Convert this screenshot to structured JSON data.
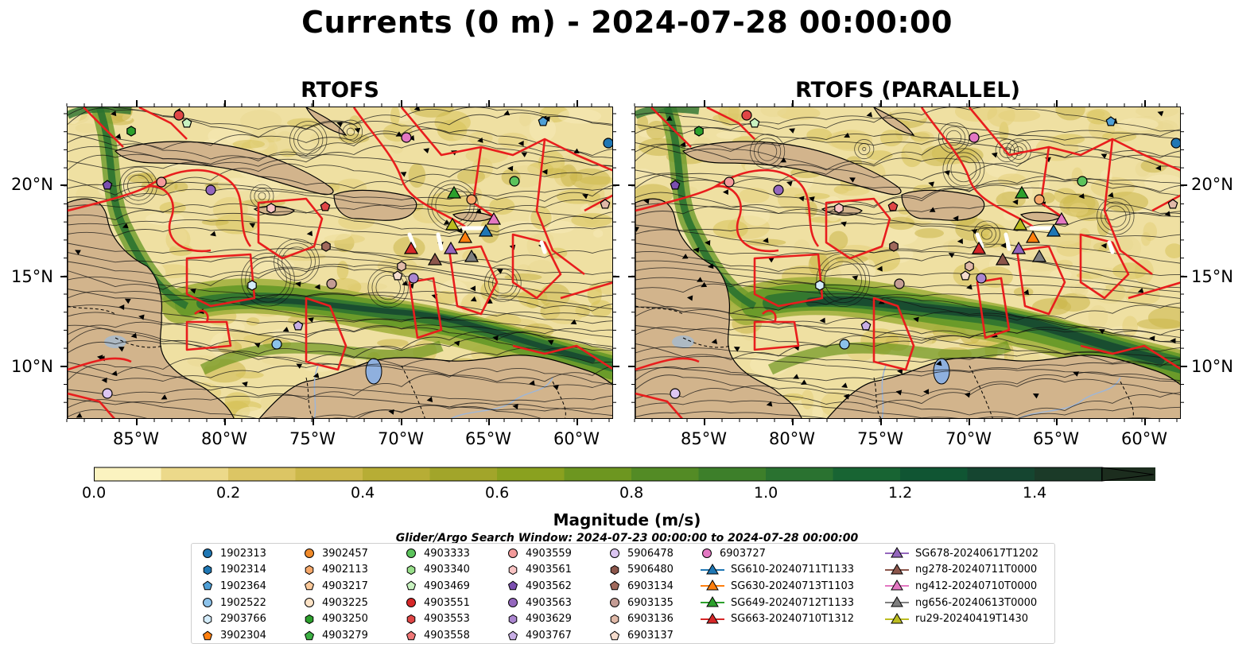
{
  "title": "Currents (0 m) - 2024-07-28 00:00:00",
  "panels": [
    {
      "title": "RTOFS"
    },
    {
      "title": "RTOFS (PARALLEL)"
    }
  ],
  "axes": {
    "lat_ticks": [
      "20°N",
      "15°N",
      "10°N"
    ],
    "lon_ticks": [
      "85°W",
      "80°W",
      "75°W",
      "70°W",
      "65°W",
      "60°W"
    ]
  },
  "colorbar": {
    "label": "Magnitude (m/s)",
    "tick_labels": [
      "0.0",
      "0.2",
      "0.4",
      "0.6",
      "0.8",
      "1.0",
      "1.2",
      "1.4"
    ],
    "colors": [
      "#fbf3c0",
      "#ecd98a",
      "#dcc564",
      "#ccb84a",
      "#b7ad35",
      "#a2a52a",
      "#8aa11f",
      "#6d9620",
      "#538b25",
      "#3d7f2a",
      "#2a7230",
      "#186433",
      "#105533",
      "#154530",
      "#1b3a28",
      "#1c2d1e"
    ]
  },
  "search_window": "Glider/Argo Search Window: 2024-07-23 00:00:00 to 2024-07-28 00:00:00",
  "legend": {
    "columns": [
      [
        {
          "label": "1902313",
          "shape": "circle",
          "color": "#1f77b4"
        },
        {
          "label": "1902314",
          "shape": "hexagon",
          "color": "#1f77b4"
        },
        {
          "label": "1902364",
          "shape": "pentagon",
          "color": "#4f9fd6"
        },
        {
          "label": "1902522",
          "shape": "circle",
          "color": "#8cc2ea"
        },
        {
          "label": "2903766",
          "shape": "hexagon",
          "color": "#d4ecfb"
        },
        {
          "label": "3902304",
          "shape": "pentagon",
          "color": "#ff7f0e"
        }
      ],
      [
        {
          "label": "3902457",
          "shape": "circle",
          "color": "#f08a2a"
        },
        {
          "label": "4902113",
          "shape": "hexagon",
          "color": "#f6a86a"
        },
        {
          "label": "4903217",
          "shape": "pentagon",
          "color": "#fbc99a"
        },
        {
          "label": "4903225",
          "shape": "circle",
          "color": "#fde3c6"
        },
        {
          "label": "4903250",
          "shape": "hexagon",
          "color": "#2ca02c"
        },
        {
          "label": "4903279",
          "shape": "pentagon",
          "color": "#3cb043"
        }
      ],
      [
        {
          "label": "4903333",
          "shape": "circle",
          "color": "#5cc35c"
        },
        {
          "label": "4903340",
          "shape": "hexagon",
          "color": "#98df8a"
        },
        {
          "label": "4903469",
          "shape": "pentagon",
          "color": "#c8f2c0"
        },
        {
          "label": "4903551",
          "shape": "circle",
          "color": "#d62728"
        },
        {
          "label": "4903553",
          "shape": "hexagon",
          "color": "#e04646"
        },
        {
          "label": "4903558",
          "shape": "pentagon",
          "color": "#ef7676"
        }
      ],
      [
        {
          "label": "4903559",
          "shape": "circle",
          "color": "#f39a9a"
        },
        {
          "label": "4903561",
          "shape": "hexagon",
          "color": "#f9c4c4"
        },
        {
          "label": "4903562",
          "shape": "pentagon",
          "color": "#7b4fb0"
        },
        {
          "label": "4903563",
          "shape": "circle",
          "color": "#9467bd"
        },
        {
          "label": "4903629",
          "shape": "hexagon",
          "color": "#ab86d0"
        },
        {
          "label": "4903767",
          "shape": "pentagon",
          "color": "#c8aee5"
        }
      ],
      [
        {
          "label": "5906478",
          "shape": "circle",
          "color": "#dcc6f2"
        },
        {
          "label": "5906480",
          "shape": "hexagon",
          "color": "#8c564b"
        },
        {
          "label": "6903134",
          "shape": "pentagon",
          "color": "#a0695c"
        },
        {
          "label": "6903135",
          "shape": "circle",
          "color": "#c49c94"
        },
        {
          "label": "6903136",
          "shape": "hexagon",
          "color": "#e0b9a8"
        },
        {
          "label": "6903137",
          "shape": "pentagon",
          "color": "#f5dccd"
        }
      ],
      [
        {
          "label": "6903727",
          "shape": "circle",
          "color": "#e377c2"
        },
        {
          "label": "SG610-20240711T1133",
          "shape": "triangle",
          "color": "#1f77b4"
        },
        {
          "label": "SG630-20240713T1103",
          "shape": "triangle",
          "color": "#ff7f0e"
        },
        {
          "label": "SG649-20240712T1133",
          "shape": "triangle",
          "color": "#2ca02c"
        },
        {
          "label": "SG663-20240710T1312",
          "shape": "triangle",
          "color": "#d62728"
        }
      ],
      [
        {
          "label": "SG678-20240617T1202",
          "shape": "triangle",
          "color": "#9467bd"
        },
        {
          "label": "ng278-20240711T0000",
          "shape": "triangle",
          "color": "#8c564b"
        },
        {
          "label": "ng412-20240710T0000",
          "shape": "triangle",
          "color": "#e377c2"
        },
        {
          "label": "ng656-20240613T0000",
          "shape": "triangle",
          "color": "#7f7f7f"
        },
        {
          "label": "ru29-20240419T1430",
          "shape": "triangle",
          "color": "#bcbd22"
        }
      ]
    ]
  }
}
